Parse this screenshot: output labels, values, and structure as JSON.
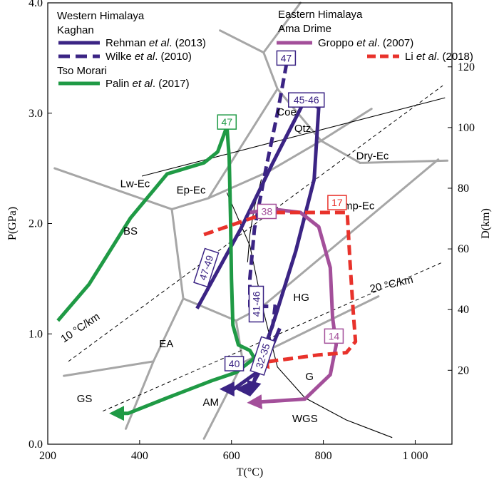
{
  "chart_data": {
    "type": "line",
    "xlabel": "T(°C)",
    "ylabel": "P(GPa)",
    "y2label": "D(km)",
    "xlim": [
      200,
      1080
    ],
    "ylim": [
      0,
      4.0
    ],
    "xticks": [
      200,
      400,
      600,
      800,
      1000
    ],
    "xtick_labels": [
      "200",
      "400",
      "600",
      "800",
      "1 000"
    ],
    "yticks": [
      0,
      1,
      2,
      3,
      4
    ],
    "ytick_labels": [
      "0.0",
      "1.0",
      "2.0",
      "3.0",
      "4.0"
    ],
    "y2ticks": [
      {
        "km": 20,
        "p": 0.67
      },
      {
        "km": 40,
        "p": 1.22
      },
      {
        "km": 60,
        "p": 1.77
      },
      {
        "km": 80,
        "p": 2.32
      },
      {
        "km": 100,
        "p": 2.87
      },
      {
        "km": 120,
        "p": 3.42
      }
    ],
    "y2tick_labels": [
      "20",
      "40",
      "60",
      "80",
      "100",
      "120"
    ],
    "colors": {
      "facies": "#a6a6a6",
      "rehman": "#3b2484",
      "palin": "#1f9a45",
      "groppo": "#a34f9a",
      "li": "#e8322b",
      "black": "#000000"
    },
    "facies_boundaries": [
      [
        [
          215,
          2.5
        ],
        [
          470,
          2.13
        ]
      ],
      [
        [
          470,
          2.13
        ],
        [
          550,
          2.23
        ]
      ],
      [
        [
          550,
          2.23
        ],
        [
          680,
          2.47
        ]
      ],
      [
        [
          680,
          2.47
        ],
        [
          795,
          2.75
        ]
      ],
      [
        [
          795,
          2.75
        ],
        [
          880,
          2.55
        ]
      ],
      [
        [
          880,
          2.55
        ],
        [
          1070,
          2.57
        ]
      ],
      [
        [
          795,
          2.75
        ],
        [
          905,
          3.04
        ]
      ],
      [
        [
          700,
          3.22
        ],
        [
          795,
          2.75
        ]
      ],
      [
        [
          700,
          3.22
        ],
        [
          670,
          3.55
        ]
      ],
      [
        [
          670,
          3.55
        ],
        [
          750,
          4.0
        ]
      ],
      [
        [
          670,
          3.55
        ],
        [
          575,
          3.75
        ]
      ],
      [
        [
          700,
          3.22
        ],
        [
          550,
          2.23
        ]
      ],
      [
        [
          470,
          2.13
        ],
        [
          495,
          1.32
        ]
      ],
      [
        [
          495,
          1.32
        ],
        [
          430,
          0.75
        ]
      ],
      [
        [
          430,
          0.75
        ],
        [
          370,
          0.14
        ]
      ],
      [
        [
          430,
          0.75
        ],
        [
          235,
          0.62
        ]
      ],
      [
        [
          495,
          1.32
        ],
        [
          530,
          1.26
        ]
      ],
      [
        [
          530,
          1.26
        ],
        [
          610,
          1.12
        ]
      ],
      [
        [
          610,
          1.12
        ],
        [
          665,
          1.24
        ]
      ],
      [
        [
          665,
          1.24
        ],
        [
          1050,
          2.58
        ]
      ],
      [
        [
          610,
          1.12
        ],
        [
          625,
          0.74
        ]
      ],
      [
        [
          625,
          0.74
        ],
        [
          540,
          0.05
        ]
      ],
      [
        [
          625,
          0.74
        ],
        [
          920,
          1.34
        ]
      ]
    ],
    "reaction_lines": [
      {
        "name": "Coe-Qtz",
        "points": [
          [
            405,
            2.43
          ],
          [
            1065,
            3.14
          ]
        ]
      },
      {
        "name": "WGS",
        "points": [
          [
            590,
            2.28
          ],
          [
            640,
            1.8
          ],
          [
            670,
            1.2
          ],
          [
            700,
            0.7
          ],
          [
            760,
            0.42
          ],
          [
            850,
            0.22
          ],
          [
            950,
            0.06
          ]
        ]
      },
      {
        "name": "solidus-hook",
        "points": [
          [
            665,
            2.4
          ],
          [
            650,
            2.15
          ],
          [
            640,
            1.9
          ],
          [
            635,
            1.65
          ]
        ]
      }
    ],
    "geotherms": [
      {
        "label": "10 °C/km",
        "points": [
          [
            245,
            0.75
          ],
          [
            1060,
            3.25
          ]
        ]
      },
      {
        "label": "20 °C/km",
        "points": [
          [
            320,
            0.3
          ],
          [
            1060,
            1.65
          ]
        ]
      }
    ],
    "facies_labels": [
      {
        "text": "Lw-Ec",
        "x": 390,
        "y": 2.33
      },
      {
        "text": "Ep-Ec",
        "x": 512,
        "y": 2.27
      },
      {
        "text": "BS",
        "x": 380,
        "y": 1.9
      },
      {
        "text": "EA",
        "x": 458,
        "y": 0.88
      },
      {
        "text": "GS",
        "x": 280,
        "y": 0.38
      },
      {
        "text": "AM",
        "x": 555,
        "y": 0.35
      },
      {
        "text": "HG",
        "x": 752,
        "y": 1.3
      },
      {
        "text": "G",
        "x": 770,
        "y": 0.58
      },
      {
        "text": "Dry-Ec",
        "x": 907,
        "y": 2.58
      },
      {
        "text": "Amp-Ec",
        "x": 870,
        "y": 2.13
      },
      {
        "text": "Coe",
        "x": 720,
        "y": 2.98
      },
      {
        "text": "Qtz",
        "x": 755,
        "y": 2.83
      },
      {
        "text": "WGS",
        "x": 760,
        "y": 0.2
      }
    ],
    "geotherm_labels": [
      {
        "text": "10 °C/km",
        "x": 275,
        "y": 1.03,
        "angle": -34
      },
      {
        "text": "20 °C/km",
        "x": 950,
        "y": 1.42,
        "angle": -13
      }
    ],
    "series": [
      {
        "name": "Rehman et al. (2013)",
        "color": "#3b2484",
        "dash": false,
        "points": [
          [
            525,
            1.23
          ],
          [
            620,
            1.95
          ],
          [
            690,
            2.55
          ],
          [
            760,
            3.12
          ],
          [
            790,
            3.05
          ],
          [
            780,
            2.4
          ],
          [
            740,
            1.75
          ],
          [
            695,
            1.15
          ],
          [
            655,
            0.65
          ],
          [
            605,
            0.5
          ],
          [
            590,
            0.5
          ]
        ]
      },
      {
        "name": "Rehman et al. (2013)",
        "color": "#3b2484",
        "dash": false,
        "points": [
          [
            705,
            1.05
          ],
          [
            680,
            0.8
          ],
          [
            660,
            0.65
          ],
          [
            640,
            0.5
          ],
          [
            625,
            0.5
          ]
        ]
      },
      {
        "name": "Wilke et al. (2010)",
        "color": "#3b2484",
        "dash": true,
        "points": [
          [
            720,
            3.45
          ],
          [
            700,
            3.0
          ],
          [
            675,
            2.5
          ],
          [
            650,
            1.95
          ],
          [
            640,
            1.5
          ],
          [
            640,
            1.25
          ],
          [
            695,
            1.25
          ],
          [
            690,
            1.08
          ],
          [
            665,
            0.8
          ],
          [
            650,
            0.58
          ],
          [
            645,
            0.5
          ]
        ]
      },
      {
        "name": "Palin et al. (2017)",
        "color": "#1f9a45",
        "dash": false,
        "points": [
          [
            222,
            1.12
          ],
          [
            290,
            1.45
          ],
          [
            380,
            2.05
          ],
          [
            460,
            2.45
          ],
          [
            540,
            2.55
          ],
          [
            570,
            2.65
          ],
          [
            590,
            2.88
          ],
          [
            595,
            2.6
          ],
          [
            598,
            2.05
          ],
          [
            600,
            1.5
          ],
          [
            603,
            1.08
          ],
          [
            615,
            0.9
          ],
          [
            640,
            0.85
          ],
          [
            650,
            0.78
          ],
          [
            610,
            0.65
          ],
          [
            560,
            0.58
          ],
          [
            460,
            0.42
          ],
          [
            375,
            0.28
          ],
          [
            350,
            0.28
          ]
        ]
      },
      {
        "name": "Groppo et al. (2007)",
        "color": "#a34f9a",
        "dash": false,
        "points": [
          [
            640,
            2.1
          ],
          [
            690,
            2.13
          ],
          [
            750,
            2.1
          ],
          [
            790,
            1.97
          ],
          [
            815,
            1.6
          ],
          [
            820,
            1.15
          ],
          [
            828,
            0.9
          ],
          [
            815,
            0.63
          ],
          [
            760,
            0.41
          ],
          [
            690,
            0.39
          ],
          [
            650,
            0.38
          ]
        ]
      },
      {
        "name": "Li et al. (2018)",
        "color": "#e8322b",
        "dash": true,
        "points": [
          [
            540,
            1.9
          ],
          [
            610,
            2.0
          ],
          [
            680,
            2.1
          ],
          [
            780,
            2.1
          ],
          [
            852,
            2.1
          ],
          [
            858,
            1.65
          ],
          [
            865,
            1.2
          ],
          [
            870,
            0.93
          ],
          [
            850,
            0.83
          ],
          [
            790,
            0.81
          ],
          [
            700,
            0.76
          ],
          [
            665,
            0.74
          ]
        ]
      }
    ],
    "boxes": [
      {
        "text": "47",
        "x": 590,
        "y": 2.92,
        "color": "#1f9a45"
      },
      {
        "text": "47",
        "x": 719,
        "y": 3.5,
        "color": "#3b2484"
      },
      {
        "text": "45-46",
        "x": 763,
        "y": 3.12,
        "color": "#3b2484"
      },
      {
        "text": "47-49",
        "x": 545,
        "y": 1.6,
        "color": "#3b2484",
        "angle": -72
      },
      {
        "text": "41-46",
        "x": 654,
        "y": 1.27,
        "color": "#3b2484",
        "angle": -90
      },
      {
        "text": "32-35",
        "x": 668,
        "y": 0.8,
        "color": "#3b2484",
        "angle": -72
      },
      {
        "text": "40",
        "x": 606,
        "y": 0.73,
        "color": "#3b2484"
      },
      {
        "text": "38",
        "x": 677,
        "y": 2.11,
        "color": "#a34f9a"
      },
      {
        "text": "17",
        "x": 830,
        "y": 2.19,
        "color": "#e8322b"
      },
      {
        "text": "14",
        "x": 823,
        "y": 0.98,
        "color": "#a34f9a"
      }
    ],
    "legend": {
      "placement": "top",
      "western_title": "Western Himalaya",
      "kaghan": "Kaghan",
      "rehman_pre": "Rehman ",
      "rehman_italic": "et al",
      "rehman_post": ". (2013)",
      "wilke_pre": "Wilke ",
      "wilke_italic": "et al",
      "wilke_post": ". (2010)",
      "tso_morari": "Tso Morari",
      "palin_pre": "Palin ",
      "palin_italic": "et al",
      "palin_post": ". (2017)",
      "eastern_title": "Eastern Himalaya",
      "ama_drime": "Ama Drime",
      "groppo_pre": "Groppo ",
      "groppo_italic": "et al",
      "groppo_post": ". (2007)",
      "li_pre": "Li ",
      "li_italic": "et al",
      "li_post": ". (2018)"
    }
  }
}
